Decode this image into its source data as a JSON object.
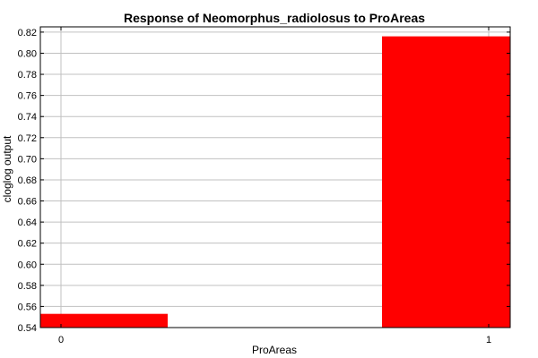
{
  "chart_data": {
    "type": "bar",
    "title": "Response of Neomorphus_radiolosus to ProAreas",
    "xlabel": "ProAreas",
    "ylabel": "cloglog output",
    "categories": [
      "0",
      "1"
    ],
    "values": [
      0.553,
      0.816
    ],
    "ylim": [
      0.54,
      0.825
    ],
    "yticks": [
      "0.54",
      "0.56",
      "0.58",
      "0.60",
      "0.62",
      "0.64",
      "0.66",
      "0.68",
      "0.70",
      "0.72",
      "0.74",
      "0.76",
      "0.78",
      "0.80",
      "0.82"
    ],
    "grid": true,
    "bar_color": "#ff0000",
    "grid_color": "#c0c0c0"
  }
}
